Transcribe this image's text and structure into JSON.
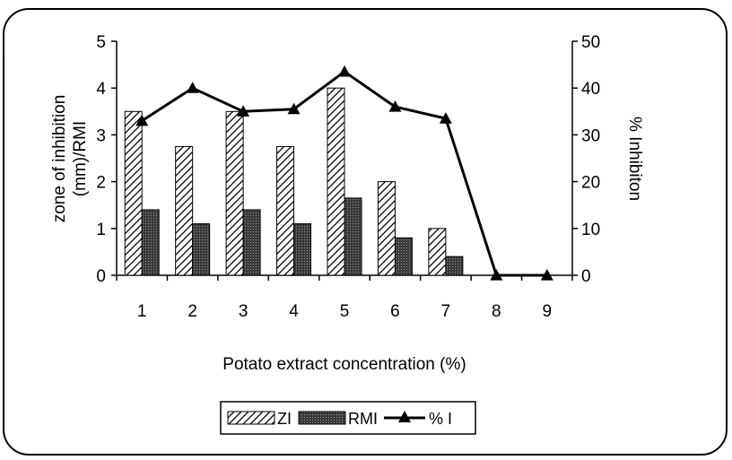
{
  "chart_data": {
    "type": "bar",
    "categories": [
      "1",
      "2",
      "3",
      "4",
      "5",
      "6",
      "7",
      "8",
      "9"
    ],
    "series": [
      {
        "name": "ZI",
        "kind": "bar",
        "axis": "left",
        "pattern": "diagonal-hatch",
        "values": [
          3.5,
          2.75,
          3.5,
          2.75,
          4.0,
          2.0,
          1.0,
          0,
          0
        ]
      },
      {
        "name": "RMI",
        "kind": "bar",
        "axis": "left",
        "pattern": "dense-fill",
        "values": [
          1.4,
          1.1,
          1.4,
          1.1,
          1.65,
          0.8,
          0.4,
          0,
          0
        ]
      },
      {
        "name": "% I",
        "kind": "line",
        "axis": "right",
        "marker": "triangle",
        "values": [
          33,
          40,
          35,
          35.5,
          43.5,
          36,
          33.5,
          0,
          0
        ]
      }
    ],
    "xlabel": "Potato extract concentration (%)",
    "ylabel_left": [
      "zone of inhibition",
      "(mm)/RMI"
    ],
    "ylabel_right": "% Inhibiton",
    "ylim_left": [
      0,
      5
    ],
    "ylim_right": [
      0,
      50
    ],
    "yticks_left": [
      "0",
      "1",
      "2",
      "3",
      "4",
      "5"
    ],
    "yticks_right": [
      "0",
      "10",
      "20",
      "30",
      "40",
      "50"
    ],
    "legend": {
      "position": "bottom",
      "items": [
        "ZI",
        "RMI",
        "% I"
      ]
    },
    "grid": false,
    "colors": {
      "bars": "#000000",
      "line": "#000000",
      "frame": "#000000",
      "background": "#ffffff"
    }
  }
}
